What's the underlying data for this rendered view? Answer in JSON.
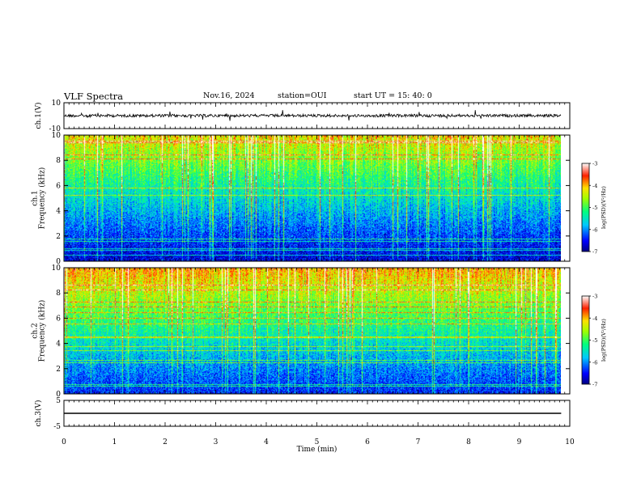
{
  "header": {
    "title": "VLF Spectra",
    "date": "Nov.16, 2024",
    "station": "station=OUI",
    "start": "start UT =  15: 40: 0"
  },
  "chart_data": [
    {
      "type": "line",
      "ylabel": "ch.1(V)",
      "ylim": [
        -10,
        10
      ],
      "yticks": [
        "10",
        "-10"
      ],
      "description_values": {
        "baseline": 0
      }
    },
    {
      "type": "heatmap",
      "ylabel_lines": [
        "ch.1",
        "Frequency (kHz)"
      ],
      "ylim": [
        0,
        10
      ],
      "yticks": [
        "0",
        "2",
        "4",
        "6",
        "8",
        "10"
      ],
      "colorbar": {
        "label": "log(PSD)(V²/Hz)",
        "range": [
          -7,
          -3
        ],
        "ticks": [
          "-3",
          "-4",
          "-5",
          "-6",
          "-7"
        ]
      }
    },
    {
      "type": "heatmap",
      "ylabel_lines": [
        "ch.2",
        "Frequency (kHz)"
      ],
      "ylim": [
        0,
        10
      ],
      "yticks": [
        "0",
        "2",
        "4",
        "6",
        "8",
        "10"
      ],
      "colorbar": {
        "label": "log(PSD)(V²/Hz)",
        "range": [
          -7,
          -3
        ],
        "ticks": [
          "-3",
          "-4",
          "-5",
          "-6",
          "-7"
        ]
      }
    },
    {
      "type": "line",
      "ylabel": "ch.3(V)",
      "ylim": [
        -5,
        5
      ],
      "yticks": [
        "5",
        "-5"
      ],
      "x": [
        0,
        9.83
      ],
      "y": [
        0,
        0
      ]
    }
  ],
  "xaxis": {
    "label": "Time (min)",
    "range": [
      0,
      10
    ],
    "ticks": [
      "0",
      "1",
      "2",
      "3",
      "4",
      "5",
      "6",
      "7",
      "8",
      "9",
      "10"
    ],
    "data_end": 9.83
  }
}
